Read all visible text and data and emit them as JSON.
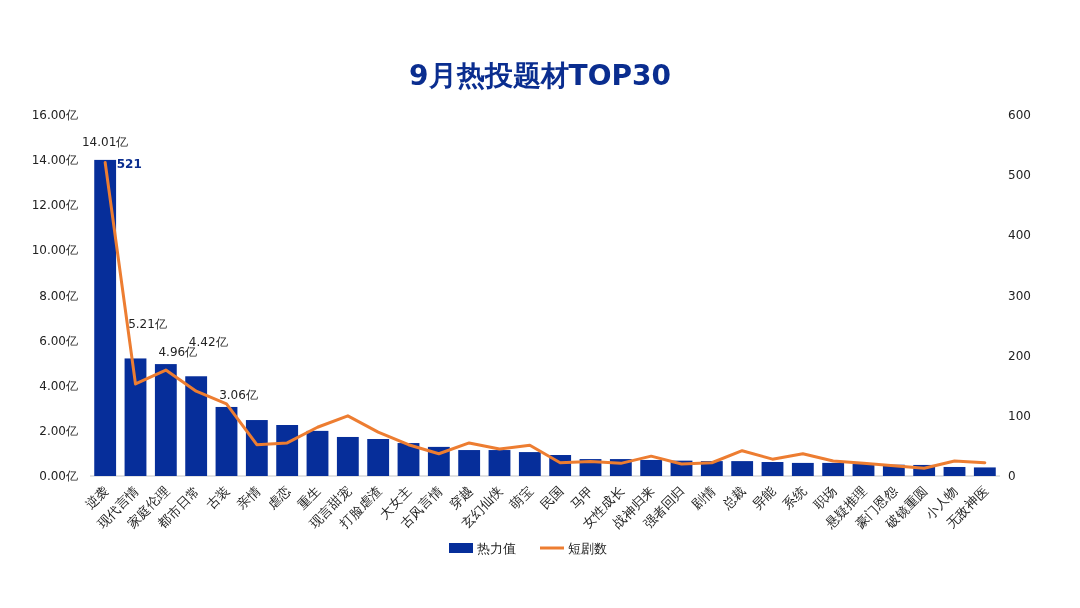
{
  "chart_data": {
    "type": "bar",
    "title": "9月热投题材TOP30",
    "categories": [
      "逆袭",
      "现代言情",
      "家庭伦理",
      "都市日常",
      "古装",
      "亲情",
      "虐恋",
      "重生",
      "现言甜宠",
      "打脸虐渣",
      "大女主",
      "古风言情",
      "穿越",
      "玄幻仙侠",
      "萌宝",
      "民国",
      "马甲",
      "女性成长",
      "战神归来",
      "强者回归",
      "剧情",
      "总裁",
      "异能",
      "系统",
      "职场",
      "悬疑推理",
      "豪门恩怨",
      "破镜重圆",
      "小人物",
      "无敌神医"
    ],
    "series": [
      {
        "name": "热力值",
        "color": "#062e9a",
        "values": [
          14.01,
          5.21,
          4.96,
          4.42,
          3.06,
          2.48,
          2.26,
          2.0,
          1.73,
          1.64,
          1.46,
          1.29,
          1.15,
          1.15,
          1.06,
          0.93,
          0.75,
          0.75,
          0.71,
          0.68,
          0.66,
          0.66,
          0.62,
          0.58,
          0.58,
          0.53,
          0.5,
          0.49,
          0.4,
          0.38
        ],
        "value_labels": [
          "14.01亿",
          "5.21亿",
          "4.96亿",
          "4.42亿",
          "3.06亿",
          null,
          null,
          null,
          null,
          null,
          null,
          null,
          null,
          null,
          null,
          null,
          null,
          null,
          null,
          null,
          null,
          null,
          null,
          null,
          null,
          null,
          null,
          null,
          null,
          null
        ]
      },
      {
        "name": "短剧数",
        "type": "line",
        "axis": "y2",
        "color": "#ed7d31",
        "values": [
          521,
          153,
          176,
          141,
          120,
          52,
          55,
          81,
          100,
          73,
          52,
          37,
          55,
          45,
          51,
          22,
          24,
          21,
          33,
          20,
          22,
          42,
          28,
          37,
          25,
          21,
          17,
          13,
          25,
          22
        ],
        "value_labels": [
          "521",
          null,
          null,
          null,
          null,
          null,
          null,
          null,
          null,
          null,
          null,
          null,
          null,
          null,
          null,
          null,
          null,
          null,
          null,
          null,
          null,
          null,
          null,
          null,
          null,
          null,
          null,
          null,
          null,
          null
        ]
      }
    ],
    "ylim": [
      0,
      16
    ],
    "yticks": [
      {
        "value": 0,
        "label": "0.00亿"
      },
      {
        "value": 2,
        "label": "2.00亿"
      },
      {
        "value": 4,
        "label": "4.00亿"
      },
      {
        "value": 6,
        "label": "6.00亿"
      },
      {
        "value": 8,
        "label": "8.00亿"
      },
      {
        "value": 10,
        "label": "10.00亿"
      },
      {
        "value": 12,
        "label": "12.00亿"
      },
      {
        "value": 14,
        "label": "14.00亿"
      },
      {
        "value": 16,
        "label": "16.00亿"
      }
    ],
    "y2lim": [
      0,
      600
    ],
    "y2ticks": [
      0,
      100,
      200,
      300,
      400,
      500,
      600
    ],
    "grid": false,
    "legend": "bottom",
    "marker": "none",
    "line_style": "solid"
  }
}
